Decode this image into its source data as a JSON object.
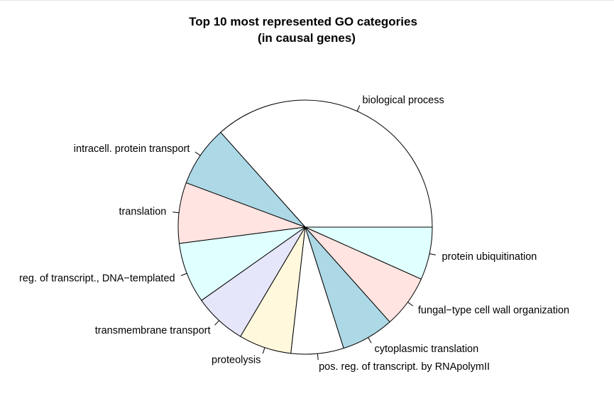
{
  "chart_data": {
    "type": "pie",
    "title": "Top 10 most represented GO categories",
    "subtitle": "(in causal genes)",
    "direction": "counterclockwise",
    "start": "3 o'clock",
    "slices": [
      {
        "label": "biological process",
        "value": 35.5,
        "color": "#ffffff"
      },
      {
        "label": "intracell. protein transport",
        "value": 7.5,
        "color": "#add8e6"
      },
      {
        "label": "translation",
        "value": 7.5,
        "color": "#ffe4e1"
      },
      {
        "label": "reg. of transcript., DNA−templated",
        "value": 7.5,
        "color": "#e0ffff"
      },
      {
        "label": "transmembrane transport",
        "value": 6.5,
        "color": "#e6e6fa"
      },
      {
        "label": "proteolysis",
        "value": 6.5,
        "color": "#fff8dc"
      },
      {
        "label": "pos. reg. of transcript. by RNApolymII",
        "value": 6.5,
        "color": "#ffffff"
      },
      {
        "label": "cytoplasmic translation",
        "value": 6.5,
        "color": "#add8e6"
      },
      {
        "label": "fungal−type cell wall organization",
        "value": 6.5,
        "color": "#ffe4e1"
      },
      {
        "label": "protein ubiquitination",
        "value": 6.5,
        "color": "#e0ffff"
      }
    ]
  }
}
